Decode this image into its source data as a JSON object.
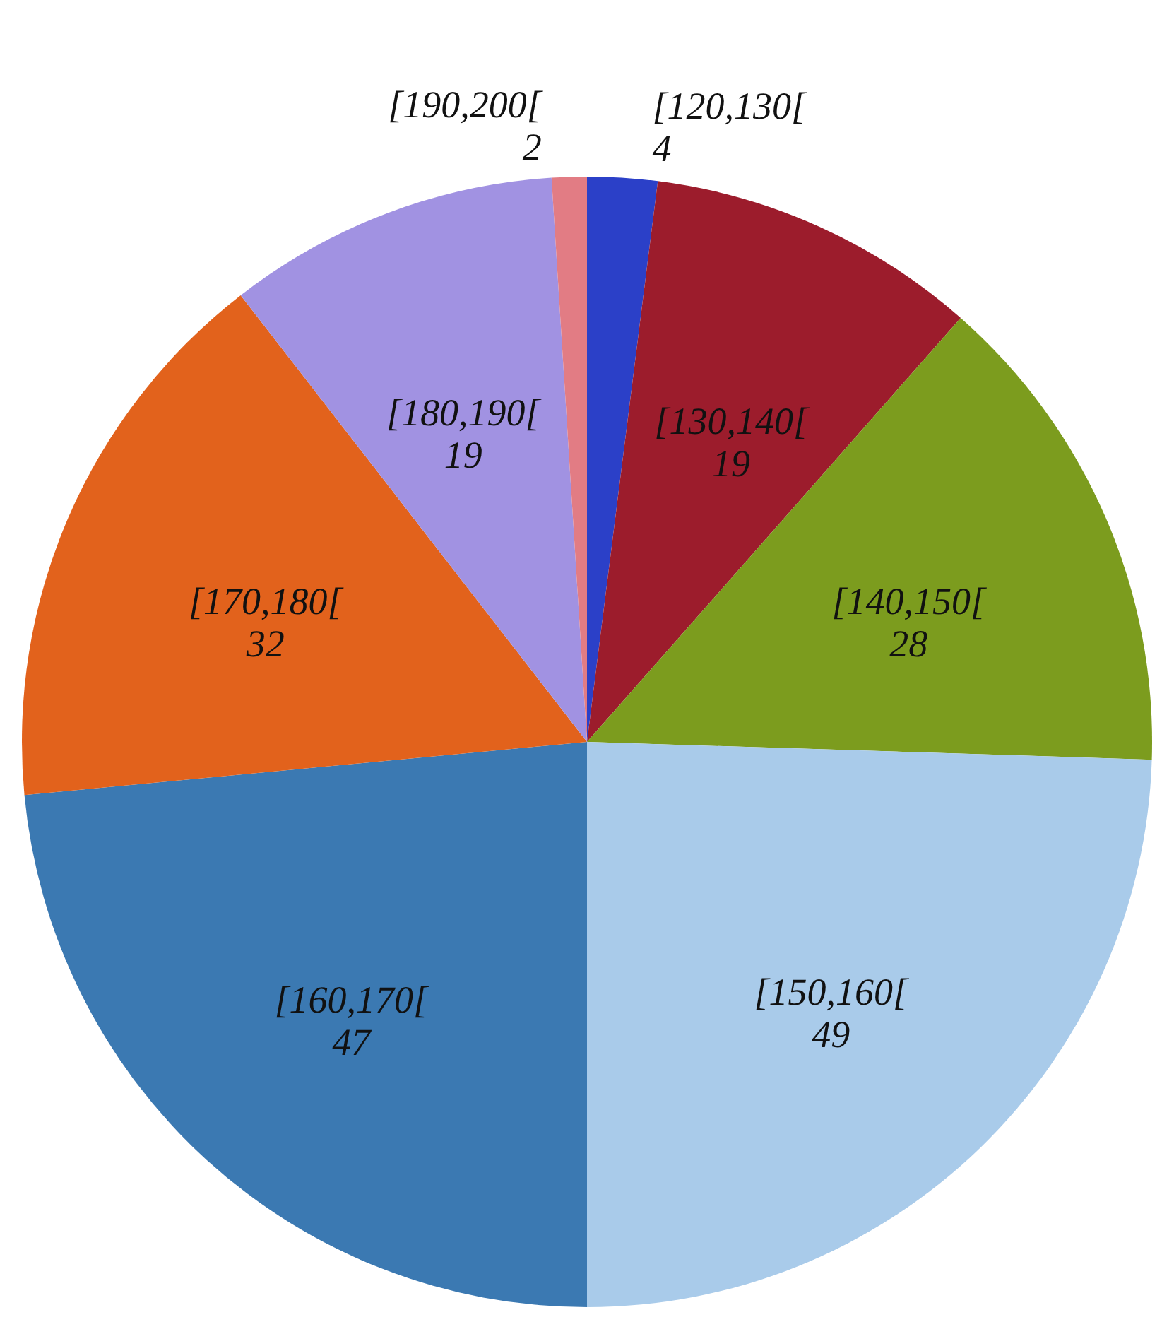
{
  "chart_data": {
    "type": "pie",
    "categories": [
      "[120,130[",
      "[130,140[",
      "[140,150[",
      "[150,160[",
      "[160,170[",
      "[170,180[",
      "[180,190[",
      "[190,200["
    ],
    "values": [
      4,
      19,
      28,
      49,
      47,
      32,
      19,
      2
    ],
    "colors": [
      "#2b40c8",
      "#9c1c2c",
      "#7c9c1e",
      "#a9cbea",
      "#3b79b2",
      "#e2621c",
      "#a192e2",
      "#e27c84"
    ],
    "data_labels": true,
    "legend": false
  }
}
